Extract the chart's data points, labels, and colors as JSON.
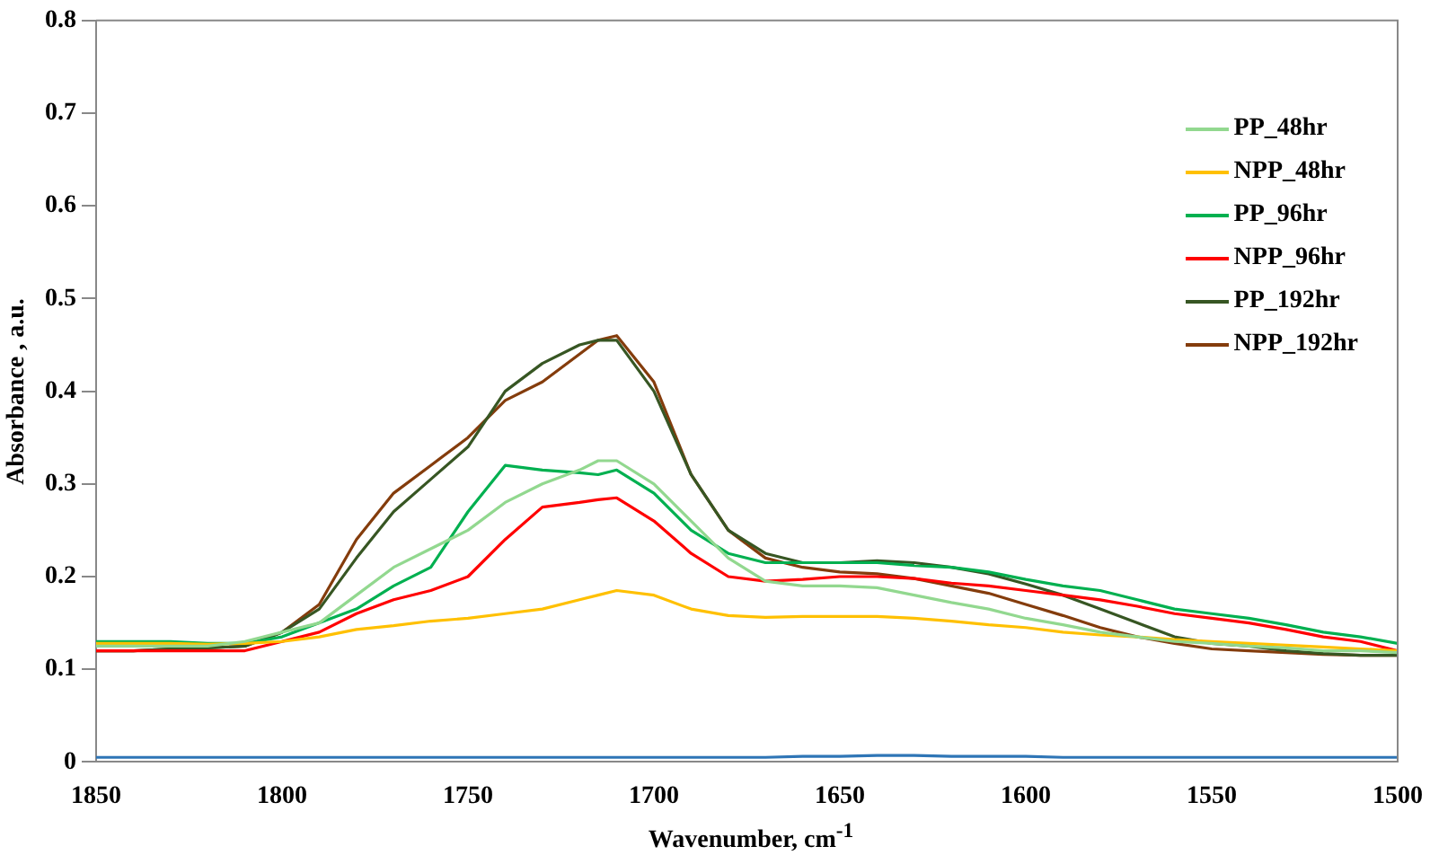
{
  "chart_data": {
    "type": "line",
    "xlabel": "Wavenumber, cm$^{-1}$",
    "ylabel": "Absorbance , a.u.",
    "x": [
      1850,
      1840,
      1830,
      1820,
      1810,
      1800,
      1790,
      1780,
      1770,
      1760,
      1750,
      1740,
      1730,
      1720,
      1715,
      1710,
      1700,
      1690,
      1680,
      1670,
      1660,
      1650,
      1640,
      1630,
      1620,
      1610,
      1600,
      1590,
      1580,
      1570,
      1560,
      1550,
      1540,
      1530,
      1520,
      1510,
      1500
    ],
    "xlim": [
      1850,
      1500
    ],
    "xticks": [
      1850,
      1800,
      1750,
      1700,
      1650,
      1600,
      1550,
      1500
    ],
    "ylim": [
      0,
      0.8
    ],
    "yticks": [
      0,
      0.1,
      0.2,
      0.3,
      0.4,
      0.5,
      0.6,
      0.7,
      0.8
    ],
    "grid": false,
    "legend": "top right",
    "marker": "none",
    "line_style": "solid",
    "series": [
      {
        "name": "PP_48hr",
        "color": "#92d88f",
        "values": [
          0.125,
          0.125,
          0.125,
          0.125,
          0.13,
          0.14,
          0.15,
          0.18,
          0.21,
          0.23,
          0.25,
          0.28,
          0.3,
          0.315,
          0.325,
          0.325,
          0.3,
          0.26,
          0.22,
          0.195,
          0.19,
          0.19,
          0.188,
          0.18,
          0.172,
          0.165,
          0.155,
          0.148,
          0.14,
          0.135,
          0.13,
          0.128,
          0.125,
          0.123,
          0.12,
          0.12,
          0.118
        ]
      },
      {
        "name": "NPP_48hr",
        "color": "#ffc000",
        "values": [
          0.128,
          0.128,
          0.128,
          0.127,
          0.128,
          0.13,
          0.135,
          0.143,
          0.147,
          0.152,
          0.155,
          0.16,
          0.165,
          0.175,
          0.18,
          0.185,
          0.18,
          0.165,
          0.158,
          0.156,
          0.157,
          0.157,
          0.157,
          0.155,
          0.152,
          0.148,
          0.145,
          0.14,
          0.137,
          0.135,
          0.132,
          0.13,
          0.128,
          0.126,
          0.124,
          0.122,
          0.12
        ]
      },
      {
        "name": "PP_96hr",
        "color": "#00b050",
        "values": [
          0.13,
          0.13,
          0.13,
          0.128,
          0.128,
          0.135,
          0.15,
          0.165,
          0.19,
          0.21,
          0.27,
          0.32,
          0.315,
          0.312,
          0.31,
          0.315,
          0.29,
          0.25,
          0.225,
          0.215,
          0.215,
          0.215,
          0.215,
          0.212,
          0.21,
          0.205,
          0.197,
          0.19,
          0.185,
          0.175,
          0.165,
          0.16,
          0.155,
          0.148,
          0.14,
          0.135,
          0.128
        ]
      },
      {
        "name": "NPP_96hr",
        "color": "#ff0000",
        "values": [
          0.12,
          0.12,
          0.12,
          0.12,
          0.12,
          0.13,
          0.14,
          0.16,
          0.175,
          0.185,
          0.2,
          0.24,
          0.275,
          0.28,
          0.283,
          0.285,
          0.26,
          0.225,
          0.2,
          0.195,
          0.197,
          0.2,
          0.2,
          0.198,
          0.193,
          0.19,
          0.185,
          0.18,
          0.175,
          0.168,
          0.16,
          0.155,
          0.15,
          0.143,
          0.135,
          0.13,
          0.12
        ]
      },
      {
        "name": "PP_192hr",
        "color": "#375623",
        "values": [
          0.12,
          0.12,
          0.122,
          0.123,
          0.125,
          0.14,
          0.165,
          0.22,
          0.27,
          0.305,
          0.34,
          0.4,
          0.43,
          0.45,
          0.455,
          0.455,
          0.4,
          0.31,
          0.25,
          0.225,
          0.215,
          0.215,
          0.217,
          0.215,
          0.21,
          0.203,
          0.192,
          0.18,
          0.165,
          0.15,
          0.135,
          0.128,
          0.125,
          0.12,
          0.117,
          0.115,
          0.115
        ]
      },
      {
        "name": "NPP_192hr",
        "color": "#843c0c",
        "values": [
          0.12,
          0.12,
          0.122,
          0.123,
          0.125,
          0.14,
          0.17,
          0.24,
          0.29,
          0.32,
          0.35,
          0.39,
          0.41,
          0.44,
          0.455,
          0.46,
          0.41,
          0.31,
          0.25,
          0.22,
          0.21,
          0.205,
          0.203,
          0.198,
          0.19,
          0.182,
          0.17,
          0.158,
          0.145,
          0.135,
          0.128,
          0.122,
          0.12,
          0.118,
          0.116,
          0.115,
          0.115
        ]
      },
      {
        "color": "#2e75b6",
        "values": [
          0.005,
          0.005,
          0.005,
          0.005,
          0.005,
          0.005,
          0.005,
          0.005,
          0.005,
          0.005,
          0.005,
          0.005,
          0.005,
          0.005,
          0.005,
          0.005,
          0.005,
          0.005,
          0.005,
          0.005,
          0.006,
          0.006,
          0.007,
          0.007,
          0.006,
          0.006,
          0.006,
          0.005,
          0.005,
          0.005,
          0.005,
          0.005,
          0.005,
          0.005,
          0.005,
          0.005,
          0.005
        ]
      }
    ]
  }
}
